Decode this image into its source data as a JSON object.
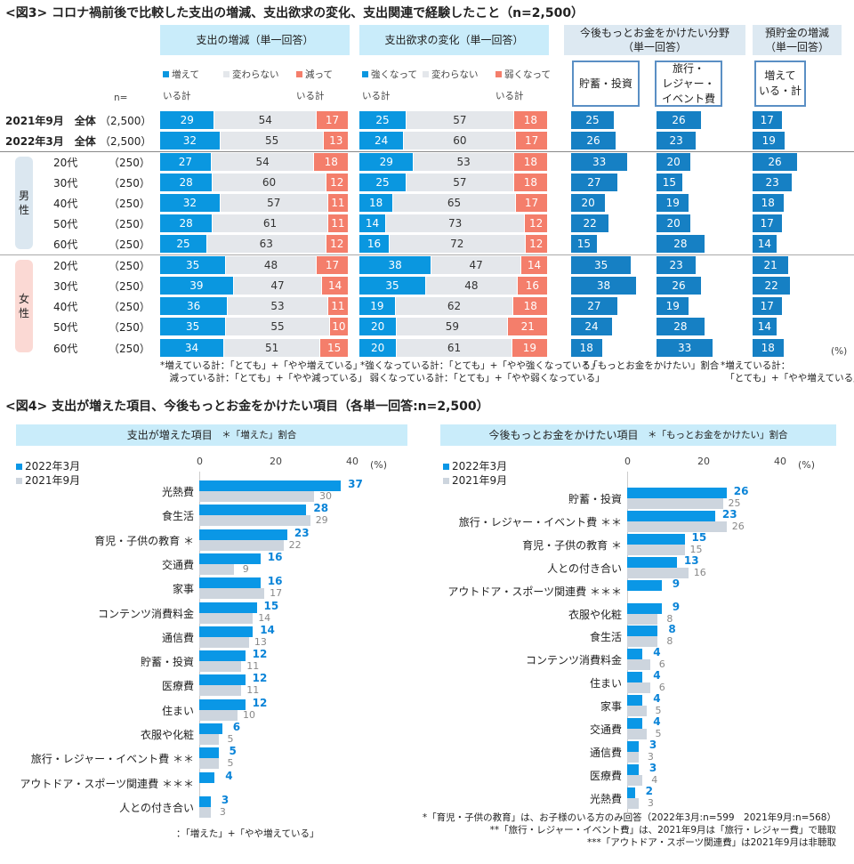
{
  "fig3": {
    "title": "<図3> コロナ禍前後で比較した支出の増減、支出欲求の変化、支出関連で経験したこと（n=2,500）",
    "headers": {
      "spend": "支出の増減（単一回答）",
      "desire": "支出欲求の変化（単一回答）",
      "future": "今後もっとお金をかけたい分野\n（単一回答）",
      "deposit": "預貯金の増減\n（単一回答）"
    },
    "box_labels": {
      "savings": "貯蓄・投資",
      "travel": "旅行・\nレジャー・\nイベント費",
      "deposit": "増えて\nいる・計"
    },
    "legend_spend": [
      "増えて\nいる計",
      "変わらない",
      "減って\nいる計"
    ],
    "legend_desire": [
      "強くなって\nいる計",
      "変わらない",
      "弱くなって\nいる計"
    ],
    "n_label": "n=",
    "groups": {
      "male": "男\n性",
      "female": "女\n性"
    },
    "percent": "(%)",
    "colors": {
      "up": "#0a97e0",
      "same": "#e4e7eb",
      "down": "#f47e6b",
      "single": "#1680c4",
      "male": "#dbe7f0",
      "female": "#fbd9d4"
    },
    "rows": [
      {
        "label": "2021年9月　全体",
        "n": "（2,500）",
        "spend": [
          29,
          54,
          17
        ],
        "desire": [
          25,
          57,
          18
        ],
        "savings": 25,
        "travel": 26,
        "deposit": 17
      },
      {
        "label": "2022年3月　全体",
        "n": "（2,500）",
        "spend": [
          32,
          55,
          13
        ],
        "desire": [
          24,
          60,
          17
        ],
        "savings": 26,
        "travel": 23,
        "deposit": 19
      },
      {
        "label": "20代",
        "n": "（250）",
        "spend": [
          27,
          54,
          18
        ],
        "desire": [
          29,
          53,
          18
        ],
        "savings": 33,
        "travel": 20,
        "deposit": 26
      },
      {
        "label": "30代",
        "n": "（250）",
        "spend": [
          28,
          60,
          12
        ],
        "desire": [
          25,
          57,
          18
        ],
        "savings": 27,
        "travel": 15,
        "deposit": 23
      },
      {
        "label": "40代",
        "n": "（250）",
        "spend": [
          32,
          57,
          11
        ],
        "desire": [
          18,
          65,
          17
        ],
        "savings": 20,
        "travel": 19,
        "deposit": 18
      },
      {
        "label": "50代",
        "n": "（250）",
        "spend": [
          28,
          61,
          11
        ],
        "desire": [
          14,
          73,
          12
        ],
        "savings": 22,
        "travel": 20,
        "deposit": 17
      },
      {
        "label": "60代",
        "n": "（250）",
        "spend": [
          25,
          63,
          12
        ],
        "desire": [
          16,
          72,
          12
        ],
        "savings": 15,
        "travel": 28,
        "deposit": 14
      },
      {
        "label": "20代",
        "n": "（250）",
        "spend": [
          35,
          48,
          17
        ],
        "desire": [
          38,
          47,
          14
        ],
        "savings": 35,
        "travel": 23,
        "deposit": 21
      },
      {
        "label": "30代",
        "n": "（250）",
        "spend": [
          39,
          47,
          14
        ],
        "desire": [
          35,
          48,
          16
        ],
        "savings": 38,
        "travel": 26,
        "deposit": 22
      },
      {
        "label": "40代",
        "n": "（250）",
        "spend": [
          36,
          53,
          11
        ],
        "desire": [
          19,
          62,
          18
        ],
        "savings": 27,
        "travel": 19,
        "deposit": 17
      },
      {
        "label": "50代",
        "n": "（250）",
        "spend": [
          35,
          55,
          10
        ],
        "desire": [
          20,
          59,
          21
        ],
        "savings": 24,
        "travel": 28,
        "deposit": 14
      },
      {
        "label": "60代",
        "n": "（250）",
        "spend": [
          34,
          51,
          15
        ],
        "desire": [
          20,
          61,
          19
        ],
        "savings": 18,
        "travel": 33,
        "deposit": 18
      }
    ],
    "notes": {
      "spend": "*増えている計：「とても」+「やや増えている」\n　減っている計：「とても」+「やや減っている」",
      "desire": "*強くなっている計：「とても」+「やや強くなっている」\n　弱くなっている計：「とても」+「やや弱くなっている」",
      "future": "*「もっとお金をかけたい」割合",
      "deposit": "*増えている計：\n　「とても」+「やや増えている」"
    }
  },
  "fig4": {
    "title": "<図4> 支出が増えた項目、今後もっとお金をかけたい項目（各単一回答:n=2,500）",
    "footnotes": [
      "*「育児・子供の教育」は、お子様のいる方のみ回答（2022年3月:n=599　2021年9月:n=568）",
      "**「旅行・レジャー・イベント費」は、2021年9月は「旅行・レジャー費」で聴取",
      "***「アウトドア・スポーツ関連費」は2021年9月は非聴取"
    ]
  },
  "chart_data": [
    {
      "type": "bar",
      "title": "支出が増えた項目",
      "subtitle": "＊「増えた」割合",
      "note": "：「増えた」+「やや増えている」",
      "unit": "(%)",
      "xlim": [
        0,
        40
      ],
      "ticks": [
        0,
        20,
        40
      ],
      "categories": [
        "光熱費",
        "食生活",
        "育児・子供の教育 ＊",
        "交通費",
        "家事",
        "コンテンツ消費料金",
        "通信費",
        "貯蓄・投資",
        "医療費",
        "住まい",
        "衣服や化粧",
        "旅行・レジャー・イベント費 ＊＊",
        "アウトドア・スポーツ関連費 ＊＊＊",
        "人との付き合い"
      ],
      "series": [
        {
          "name": "2022年3月",
          "color": "#0a97e6",
          "values": [
            37,
            28,
            23,
            16,
            16,
            15,
            14,
            12,
            12,
            12,
            6,
            5,
            4,
            3
          ]
        },
        {
          "name": "2021年9月",
          "color": "#cdd5de",
          "values": [
            30,
            29,
            22,
            9,
            17,
            14,
            13,
            11,
            11,
            10,
            5,
            5,
            null,
            3
          ]
        }
      ]
    },
    {
      "type": "bar",
      "title": "今後もっとお金をかけたい項目",
      "subtitle": "＊「もっとお金をかけたい」割合",
      "unit": "(%)",
      "xlim": [
        0,
        40
      ],
      "ticks": [
        0,
        20,
        40
      ],
      "categories": [
        "貯蓄・投資",
        "旅行・レジャー・イベント費 ＊＊",
        "育児・子供の教育 ＊",
        "人との付き合い",
        "アウトドア・スポーツ関連費 ＊＊＊",
        "衣服や化粧",
        "食生活",
        "コンテンツ消費料金",
        "住まい",
        "家事",
        "交通費",
        "通信費",
        "医療費",
        "光熱費"
      ],
      "series": [
        {
          "name": "2022年3月",
          "color": "#0a97e6",
          "values": [
            26,
            23,
            15,
            13,
            9,
            9,
            8,
            4,
            4,
            4,
            4,
            3,
            3,
            2
          ]
        },
        {
          "name": "2021年9月",
          "color": "#cdd5de",
          "values": [
            25,
            26,
            15,
            16,
            null,
            8,
            8,
            6,
            6,
            5,
            5,
            3,
            4,
            3
          ]
        }
      ]
    }
  ]
}
